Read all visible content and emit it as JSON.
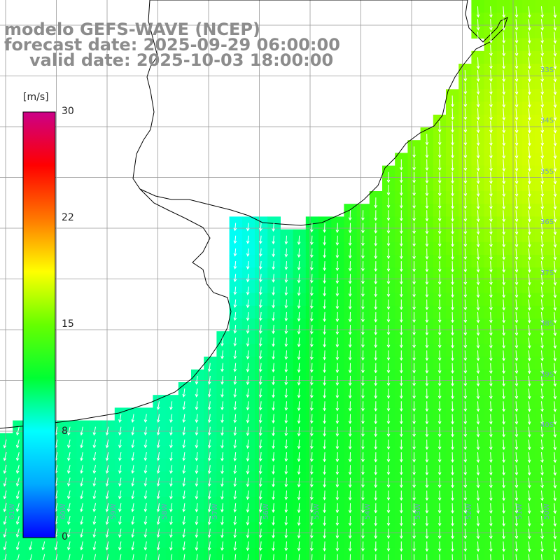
{
  "header": {
    "model_line": "modelo GEFS-WAVE (NCEP)",
    "forecast_line": "forecast date: 2025-09-29 06:00:00",
    "valid_line": "valid date: 2025-10-03 18:00:00"
  },
  "colorbar": {
    "unit": "[m/s]",
    "ticks": [
      "30",
      "22",
      "15",
      "8",
      "0"
    ],
    "tick_values": [
      30,
      22,
      15,
      8,
      0
    ],
    "min": 0,
    "max": 30,
    "colors": [
      "#0000ff",
      "#00aaff",
      "#00ffff",
      "#00ff33",
      "#66ff00",
      "#ffff00",
      "#ff7700",
      "#ff0000",
      "#cc0088"
    ]
  },
  "map": {
    "variable": "wind speed",
    "land_color": "#ffffff",
    "grid": true,
    "lon_labels": [
      "61W",
      "60W",
      "59W",
      "58W",
      "57W",
      "56W",
      "55W",
      "54W",
      "53W",
      "52W",
      "51W",
      "50W"
    ],
    "lat_labels": [
      "33S",
      "34S",
      "35S",
      "36S",
      "37S",
      "38S",
      "39S",
      "40S"
    ],
    "arrow_color": "#ffffff",
    "dominant_flow": "southward / south-southwest"
  }
}
